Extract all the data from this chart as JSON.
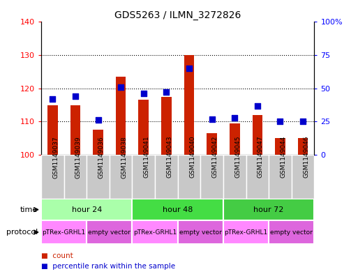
{
  "title": "GDS5263 / ILMN_3272826",
  "samples": [
    "GSM1149037",
    "GSM1149039",
    "GSM1149036",
    "GSM1149038",
    "GSM1149041",
    "GSM1149043",
    "GSM1149040",
    "GSM1149042",
    "GSM1149045",
    "GSM1149047",
    "GSM1149044",
    "GSM1149046"
  ],
  "counts": [
    115,
    115,
    107.5,
    123.5,
    116.5,
    117.5,
    130,
    106.5,
    109.5,
    112,
    105,
    105
  ],
  "percentiles": [
    42,
    44,
    26,
    51,
    46,
    47,
    65,
    27,
    28,
    37,
    25,
    25
  ],
  "ylim_left": [
    100,
    140
  ],
  "ylim_right": [
    0,
    100
  ],
  "yticks_left": [
    100,
    110,
    120,
    130,
    140
  ],
  "yticks_right": [
    0,
    25,
    50,
    75,
    100
  ],
  "ytick_labels_right": [
    "0",
    "25",
    "50",
    "75",
    "100%"
  ],
  "time_groups": [
    {
      "label": "hour 24",
      "start": 0,
      "end": 4,
      "color": "#AAFFAA"
    },
    {
      "label": "hour 48",
      "start": 4,
      "end": 8,
      "color": "#44DD44"
    },
    {
      "label": "hour 72",
      "start": 8,
      "end": 12,
      "color": "#44CC44"
    }
  ],
  "protocol_groups": [
    {
      "label": "pTRex-GRHL1",
      "start": 0,
      "end": 2,
      "color": "#FF88FF"
    },
    {
      "label": "empty vector",
      "start": 2,
      "end": 4,
      "color": "#DD66DD"
    },
    {
      "label": "pTRex-GRHL1",
      "start": 4,
      "end": 6,
      "color": "#FF88FF"
    },
    {
      "label": "empty vector",
      "start": 6,
      "end": 8,
      "color": "#DD66DD"
    },
    {
      "label": "pTRex-GRHL1",
      "start": 8,
      "end": 10,
      "color": "#FF88FF"
    },
    {
      "label": "empty vector",
      "start": 10,
      "end": 12,
      "color": "#DD66DD"
    }
  ],
  "bar_color": "#CC2200",
  "dot_color": "#0000CC",
  "bar_width": 0.45,
  "dot_size": 30,
  "sample_bg_color": "#C8C8C8",
  "time_label": "time",
  "protocol_label": "protocol",
  "legend_count_label": "count",
  "legend_pct_label": "percentile rank within the sample"
}
